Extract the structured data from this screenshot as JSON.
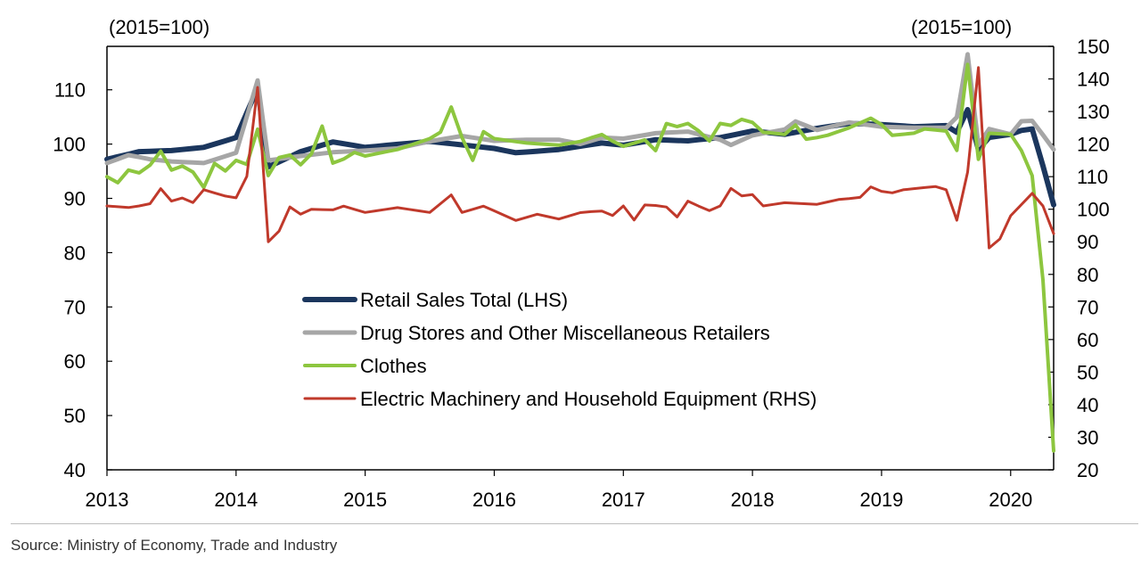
{
  "source_note": "Source: Ministry of Economy, Trade and Industry",
  "chart_data": {
    "type": "line",
    "left_axis_unit": "(2015=100)",
    "right_axis_unit": "(2015=100)",
    "x_ticks": [
      "2013",
      "2014",
      "2015",
      "2016",
      "2017",
      "2018",
      "2019",
      "2020"
    ],
    "x_range": [
      2013.0,
      2020.333
    ],
    "y_left": {
      "min": 40,
      "max": 118,
      "ticks": [
        40,
        50,
        60,
        70,
        80,
        90,
        100,
        110
      ]
    },
    "y_right": {
      "min": 20,
      "max": 150,
      "ticks": [
        20,
        30,
        40,
        50,
        60,
        70,
        80,
        90,
        100,
        110,
        120,
        130,
        140,
        150
      ]
    },
    "legend_position": "center-left",
    "grid": false,
    "series": [
      {
        "name": "Retail Sales Total (LHS)",
        "axis": "left",
        "color": "#1b365d",
        "width": 6,
        "anchors": [
          [
            2013.0,
            97.2
          ],
          [
            2013.25,
            98.6
          ],
          [
            2013.5,
            98.8
          ],
          [
            2013.75,
            99.4
          ],
          [
            2014.0,
            101.2
          ],
          [
            2014.17,
            110.5
          ],
          [
            2014.25,
            95.8
          ],
          [
            2014.5,
            98.6
          ],
          [
            2014.75,
            100.4
          ],
          [
            2015.0,
            99.4
          ],
          [
            2015.5,
            100.5
          ],
          [
            2016.0,
            99.2
          ],
          [
            2016.17,
            98.4
          ],
          [
            2016.5,
            99.0
          ],
          [
            2016.83,
            100.2
          ],
          [
            2017.0,
            99.8
          ],
          [
            2017.25,
            100.8
          ],
          [
            2017.5,
            100.6
          ],
          [
            2017.75,
            101.2
          ],
          [
            2018.0,
            102.4
          ],
          [
            2018.25,
            101.8
          ],
          [
            2018.5,
            102.9
          ],
          [
            2018.75,
            103.8
          ],
          [
            2019.0,
            103.6
          ],
          [
            2019.25,
            103.2
          ],
          [
            2019.5,
            103.4
          ],
          [
            2019.58,
            102.0
          ],
          [
            2019.67,
            106.5
          ],
          [
            2019.75,
            99.0
          ],
          [
            2019.83,
            101.2
          ],
          [
            2020.0,
            101.8
          ],
          [
            2020.08,
            102.5
          ],
          [
            2020.17,
            102.8
          ],
          [
            2020.25,
            96.0
          ],
          [
            2020.333,
            88.8
          ]
        ]
      },
      {
        "name": "Drug Stores and Other Miscellaneous Retailers",
        "axis": "left",
        "color": "#a6a6a6",
        "width": 5,
        "anchors": [
          [
            2013.0,
            96.5
          ],
          [
            2013.17,
            98.0
          ],
          [
            2013.33,
            97.2
          ],
          [
            2013.5,
            96.8
          ],
          [
            2013.75,
            96.5
          ],
          [
            2014.0,
            98.4
          ],
          [
            2014.17,
            112.0
          ],
          [
            2014.25,
            97.0
          ],
          [
            2014.5,
            97.8
          ],
          [
            2014.75,
            98.5
          ],
          [
            2015.0,
            98.8
          ],
          [
            2015.25,
            99.2
          ],
          [
            2015.5,
            100.5
          ],
          [
            2015.75,
            101.5
          ],
          [
            2016.0,
            100.6
          ],
          [
            2016.25,
            100.8
          ],
          [
            2016.5,
            100.8
          ],
          [
            2016.67,
            100.0
          ],
          [
            2016.83,
            101.2
          ],
          [
            2017.0,
            101.0
          ],
          [
            2017.25,
            102.0
          ],
          [
            2017.5,
            102.3
          ],
          [
            2017.75,
            100.8
          ],
          [
            2017.83,
            99.8
          ],
          [
            2018.0,
            101.6
          ],
          [
            2018.25,
            102.7
          ],
          [
            2018.33,
            104.2
          ],
          [
            2018.5,
            102.6
          ],
          [
            2018.75,
            104.0
          ],
          [
            2019.0,
            103.2
          ],
          [
            2019.25,
            103.0
          ],
          [
            2019.5,
            103.0
          ],
          [
            2019.58,
            104.5
          ],
          [
            2019.67,
            117.0
          ],
          [
            2019.75,
            99.8
          ],
          [
            2019.83,
            102.8
          ],
          [
            2020.0,
            101.8
          ],
          [
            2020.08,
            104.2
          ],
          [
            2020.17,
            104.3
          ],
          [
            2020.333,
            99.0
          ]
        ]
      },
      {
        "name": "Clothes",
        "axis": "left",
        "color": "#8dc63f",
        "width": 4,
        "anchors": [
          [
            2013.0,
            94.0
          ],
          [
            2013.08,
            92.8
          ],
          [
            2013.17,
            95.3
          ],
          [
            2013.25,
            94.7
          ],
          [
            2013.33,
            96.0
          ],
          [
            2013.42,
            98.8
          ],
          [
            2013.5,
            95.2
          ],
          [
            2013.58,
            96.0
          ],
          [
            2013.67,
            94.8
          ],
          [
            2013.75,
            92.0
          ],
          [
            2013.83,
            96.5
          ],
          [
            2013.92,
            95.0
          ],
          [
            2014.0,
            97.0
          ],
          [
            2014.08,
            96.0
          ],
          [
            2014.17,
            103.0
          ],
          [
            2014.25,
            94.2
          ],
          [
            2014.33,
            97.5
          ],
          [
            2014.42,
            98.0
          ],
          [
            2014.5,
            96.2
          ],
          [
            2014.58,
            98.0
          ],
          [
            2014.67,
            103.5
          ],
          [
            2014.75,
            96.5
          ],
          [
            2014.83,
            97.2
          ],
          [
            2014.92,
            98.5
          ],
          [
            2015.0,
            97.8
          ],
          [
            2015.25,
            99.0
          ],
          [
            2015.5,
            101.0
          ],
          [
            2015.58,
            102.0
          ],
          [
            2015.67,
            107.0
          ],
          [
            2015.75,
            101.2
          ],
          [
            2015.83,
            96.8
          ],
          [
            2015.92,
            102.5
          ],
          [
            2016.0,
            101.0
          ],
          [
            2016.25,
            100.2
          ],
          [
            2016.5,
            99.8
          ],
          [
            2016.67,
            100.5
          ],
          [
            2016.83,
            101.8
          ],
          [
            2016.92,
            100.5
          ],
          [
            2017.0,
            99.6
          ],
          [
            2017.17,
            100.8
          ],
          [
            2017.25,
            98.8
          ],
          [
            2017.33,
            103.8
          ],
          [
            2017.42,
            103.2
          ],
          [
            2017.5,
            103.8
          ],
          [
            2017.58,
            102.5
          ],
          [
            2017.67,
            100.5
          ],
          [
            2017.75,
            103.8
          ],
          [
            2017.83,
            103.4
          ],
          [
            2017.92,
            104.6
          ],
          [
            2018.0,
            104.0
          ],
          [
            2018.08,
            102.2
          ],
          [
            2018.25,
            101.8
          ],
          [
            2018.33,
            103.6
          ],
          [
            2018.42,
            100.8
          ],
          [
            2018.58,
            101.6
          ],
          [
            2018.75,
            103.0
          ],
          [
            2018.92,
            104.8
          ],
          [
            2019.0,
            103.6
          ],
          [
            2019.08,
            101.6
          ],
          [
            2019.25,
            102.0
          ],
          [
            2019.33,
            102.8
          ],
          [
            2019.5,
            102.4
          ],
          [
            2019.58,
            98.2
          ],
          [
            2019.67,
            115.3
          ],
          [
            2019.75,
            97.2
          ],
          [
            2019.83,
            102.0
          ],
          [
            2020.0,
            101.8
          ],
          [
            2020.08,
            99.0
          ],
          [
            2020.17,
            94.0
          ],
          [
            2020.25,
            75.0
          ],
          [
            2020.333,
            43.5
          ]
        ]
      },
      {
        "name": "Electric Machinery and Household Equipment (RHS)",
        "axis": "right",
        "color": "#c0392b",
        "width": 3,
        "anchors": [
          [
            2013.0,
            101.0
          ],
          [
            2013.17,
            100.5
          ],
          [
            2013.33,
            101.5
          ],
          [
            2013.42,
            106.5
          ],
          [
            2013.5,
            102.5
          ],
          [
            2013.58,
            103.5
          ],
          [
            2013.67,
            102.0
          ],
          [
            2013.75,
            106.0
          ],
          [
            2013.92,
            104.0
          ],
          [
            2014.0,
            103.5
          ],
          [
            2014.08,
            109.0
          ],
          [
            2014.17,
            138.5
          ],
          [
            2014.25,
            90.0
          ],
          [
            2014.33,
            93.0
          ],
          [
            2014.42,
            101.0
          ],
          [
            2014.5,
            98.5
          ],
          [
            2014.58,
            100.0
          ],
          [
            2014.75,
            99.8
          ],
          [
            2014.83,
            101.0
          ],
          [
            2015.0,
            99.0
          ],
          [
            2015.25,
            100.5
          ],
          [
            2015.5,
            99.0
          ],
          [
            2015.67,
            104.5
          ],
          [
            2015.75,
            99.0
          ],
          [
            2015.92,
            101.0
          ],
          [
            2016.0,
            99.5
          ],
          [
            2016.17,
            96.5
          ],
          [
            2016.33,
            98.5
          ],
          [
            2016.5,
            97.0
          ],
          [
            2016.67,
            99.0
          ],
          [
            2016.83,
            99.5
          ],
          [
            2016.92,
            98.0
          ],
          [
            2017.0,
            101.0
          ],
          [
            2017.08,
            96.5
          ],
          [
            2017.17,
            101.5
          ],
          [
            2017.33,
            100.8
          ],
          [
            2017.42,
            97.5
          ],
          [
            2017.5,
            102.5
          ],
          [
            2017.58,
            101.0
          ],
          [
            2017.67,
            99.5
          ],
          [
            2017.75,
            101.0
          ],
          [
            2017.83,
            106.5
          ],
          [
            2017.92,
            104.0
          ],
          [
            2018.0,
            104.5
          ],
          [
            2018.08,
            101.0
          ],
          [
            2018.25,
            102.0
          ],
          [
            2018.5,
            101.5
          ],
          [
            2018.67,
            103.0
          ],
          [
            2018.83,
            103.5
          ],
          [
            2018.92,
            107.0
          ],
          [
            2019.0,
            105.5
          ],
          [
            2019.08,
            105.0
          ],
          [
            2019.17,
            106.0
          ],
          [
            2019.42,
            107.0
          ],
          [
            2019.5,
            106.0
          ],
          [
            2019.58,
            96.0
          ],
          [
            2019.67,
            112.0
          ],
          [
            2019.75,
            143.5
          ],
          [
            2019.83,
            88.0
          ],
          [
            2019.92,
            91.0
          ],
          [
            2020.0,
            98.0
          ],
          [
            2020.17,
            105.0
          ],
          [
            2020.25,
            101.0
          ],
          [
            2020.333,
            92.5
          ]
        ]
      }
    ]
  }
}
